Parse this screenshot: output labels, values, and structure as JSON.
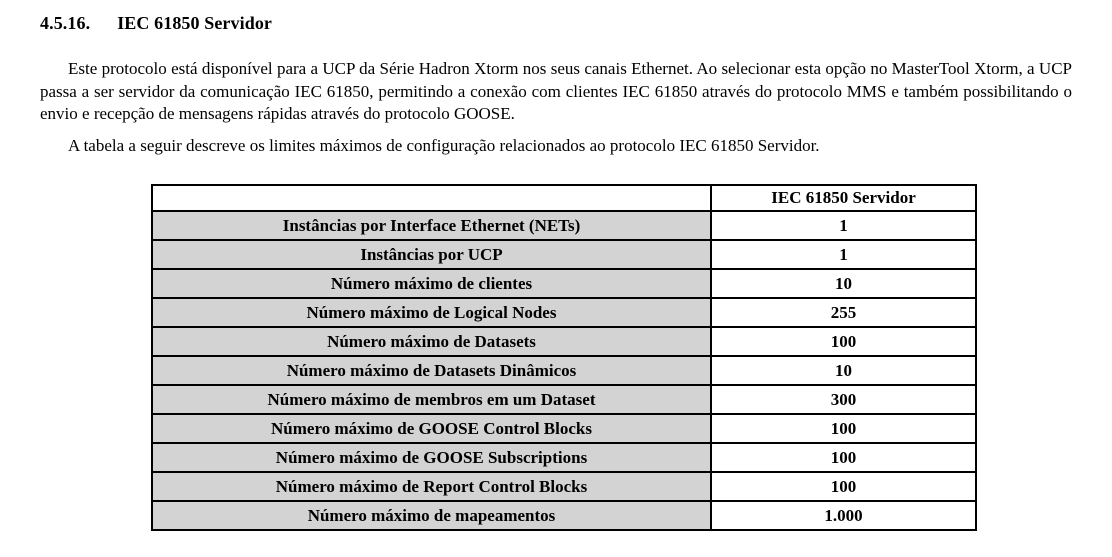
{
  "heading": {
    "number": "4.5.16.",
    "title": "IEC 61850 Servidor"
  },
  "paragraphs": {
    "intro": "Este protocolo está disponível para a UCP da Série Hadron Xtorm nos seus canais Ethernet. Ao selecionar esta opção no MasterTool Xtorm, a UCP passa a ser servidor da comunicação IEC 61850, permitindo a conexão com clientes IEC 61850 através do protocolo MMS e também possibilitando o envio e recepção de mensagens rápidas através do protocolo GOOSE.",
    "table_intro": "A tabela a seguir descreve os limites máximos de configuração relacionados ao protocolo IEC 61850 Servidor."
  },
  "table": {
    "header": "IEC 61850 Servidor",
    "colors": {
      "label_background": "#d3d3d3",
      "value_background": "#ffffff",
      "border": "#000000"
    },
    "rows": [
      {
        "label": "Instâncias por Interface Ethernet (NETs)",
        "value": "1"
      },
      {
        "label": "Instâncias por UCP",
        "value": "1"
      },
      {
        "label": "Número máximo de clientes",
        "value": "10"
      },
      {
        "label": "Número máximo de Logical Nodes",
        "value": "255"
      },
      {
        "label": "Número máximo de Datasets",
        "value": "100"
      },
      {
        "label": "Número máximo de Datasets Dinâmicos",
        "value": "10"
      },
      {
        "label": "Número máximo de membros em um Dataset",
        "value": "300"
      },
      {
        "label": "Número máximo de GOOSE Control Blocks",
        "value": "100"
      },
      {
        "label": "Número máximo de GOOSE Subscriptions",
        "value": "100"
      },
      {
        "label": "Número máximo de Report Control Blocks",
        "value": "100"
      },
      {
        "label": "Número máximo de mapeamentos",
        "value": "1.000"
      }
    ]
  }
}
